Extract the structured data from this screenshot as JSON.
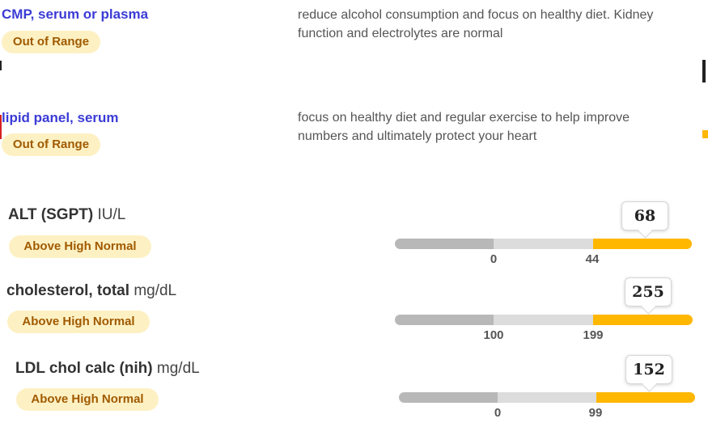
{
  "panels": [
    {
      "title": "CMP, serum or plasma",
      "status": "Out of Range",
      "note": "reduce alcohol consumption and focus on healthy diet. Kidney function and electrolytes are normal"
    },
    {
      "title": "lipid panel, serum",
      "status": "Out of Range",
      "note": "focus on healthy diet and regular exercise to help improve numbers and ultimately protect your heart"
    }
  ],
  "tests": [
    {
      "name": "ALT (SGPT)",
      "unit": "IU/L",
      "status": "Above High Normal",
      "value": "68",
      "low_label": "0",
      "high_label": "44"
    },
    {
      "name": "cholesterol, total",
      "unit": "mg/dL",
      "status": "Above High Normal",
      "value": "255",
      "low_label": "100",
      "high_label": "199"
    },
    {
      "name": "LDL chol calc (nih)",
      "unit": "mg/dL",
      "status": "Above High Normal",
      "value": "152",
      "low_label": "0",
      "high_label": "99"
    }
  ],
  "colors": {
    "panel_title": "#3b3bd6",
    "badge_bg": "#fdf1c4",
    "badge_text": "#a05a00",
    "bar_low": "#b8b8b8",
    "bar_normal": "#dcdcdc",
    "bar_high": "#ffb700"
  }
}
